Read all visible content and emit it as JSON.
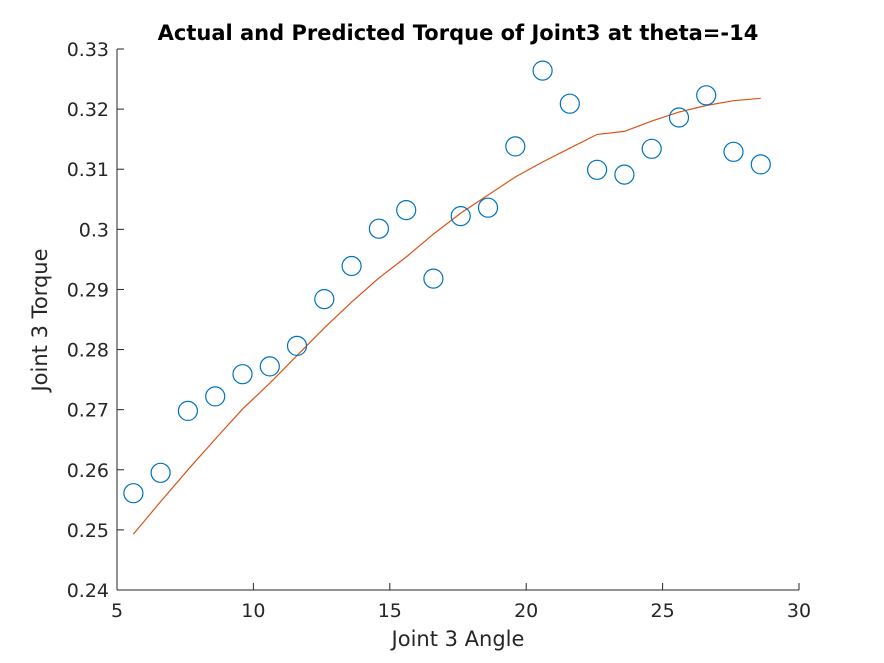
{
  "chart_data": {
    "type": "scatter",
    "title": "Actual and Predicted Torque of Joint3 at theta=-14",
    "xlabel": "Joint 3 Angle",
    "ylabel": "Joint 3 Torque",
    "xlim": [
      5,
      30
    ],
    "ylim": [
      0.24,
      0.33
    ],
    "xticks": [
      5,
      10,
      15,
      20,
      25,
      30
    ],
    "xtick_labels": [
      "5",
      "10",
      "15",
      "20",
      "25",
      "30"
    ],
    "yticks": [
      0.24,
      0.25,
      0.26,
      0.27,
      0.28,
      0.29,
      0.3,
      0.31,
      0.32,
      0.33
    ],
    "ytick_labels": [
      "0.24",
      "0.25",
      "0.26",
      "0.27",
      "0.28",
      "0.29",
      "0.3",
      "0.31",
      "0.32",
      "0.33"
    ],
    "grid": false,
    "series": [
      {
        "kind": "scatter",
        "marker": "circle",
        "color": "#0072BD",
        "x": [
          5.6,
          6.6,
          7.6,
          8.6,
          9.6,
          10.6,
          11.6,
          12.6,
          13.6,
          14.6,
          15.6,
          16.6,
          17.6,
          18.6,
          19.6,
          20.6,
          21.6,
          22.6,
          23.6,
          24.6,
          25.6,
          26.6,
          27.6,
          28.6
        ],
        "y": [
          0.2561,
          0.2595,
          0.2698,
          0.2722,
          0.2759,
          0.2772,
          0.2806,
          0.2884,
          0.2939,
          0.3001,
          0.3032,
          0.2918,
          0.3022,
          0.3036,
          0.3138,
          0.3264,
          0.3209,
          0.3099,
          0.3091,
          0.3134,
          0.3186,
          0.3223,
          0.3129,
          0.3108
        ]
      },
      {
        "kind": "line",
        "color": "#D95319",
        "x": [
          5.6,
          6.6,
          7.6,
          8.6,
          9.6,
          10.6,
          11.6,
          12.6,
          13.6,
          14.6,
          15.6,
          16.6,
          17.6,
          18.6,
          19.6,
          20.6,
          21.6,
          22.6,
          23.6,
          24.6,
          25.6,
          26.6,
          27.6,
          28.6
        ],
        "y": [
          0.2493,
          0.2547,
          0.26,
          0.2651,
          0.2701,
          0.2744,
          0.279,
          0.2836,
          0.2879,
          0.2919,
          0.2954,
          0.2992,
          0.3027,
          0.3057,
          0.3087,
          0.3112,
          0.3135,
          0.3158,
          0.3163,
          0.318,
          0.3195,
          0.3206,
          0.3214,
          0.3218
        ]
      }
    ]
  }
}
